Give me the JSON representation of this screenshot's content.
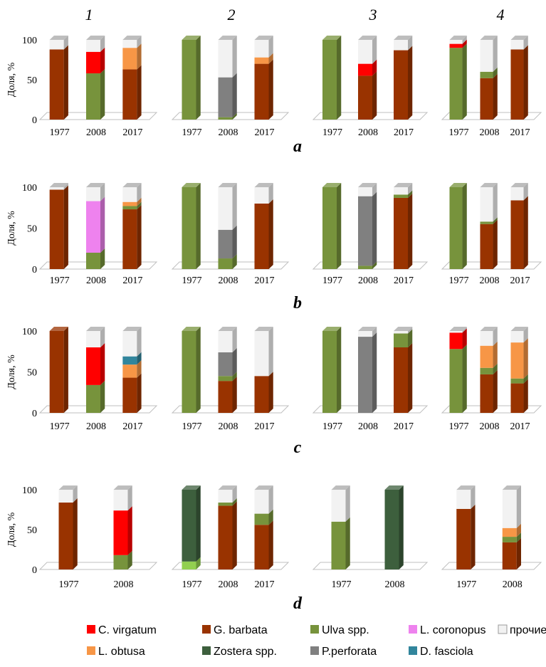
{
  "column_labels": [
    "1",
    "2",
    "3",
    "4"
  ],
  "row_labels": [
    "a",
    "b",
    "c",
    "d"
  ],
  "legend": {
    "items": [
      {
        "key": "cv",
        "label": "C. virgatum",
        "color": "#ff0000"
      },
      {
        "key": "gb",
        "label": "G. barbata",
        "color": "#993300"
      },
      {
        "key": "ul",
        "label": "Ulva spp.",
        "color": "#77933c"
      },
      {
        "key": "lc",
        "label": "L. coronopus",
        "color": "#ee82ee"
      },
      {
        "key": "pr",
        "label": "прочие",
        "color": "#f2f2f2"
      },
      {
        "key": "lo",
        "label": "L. obtusa",
        "color": "#f79646"
      },
      {
        "key": "zo",
        "label": "Zostera spp.",
        "color": "#3d5f3d"
      },
      {
        "key": "pp",
        "label": "P.perforata",
        "color": "#808080"
      },
      {
        "key": "df",
        "label": "D. fasciola",
        "color": "#31859c"
      }
    ]
  },
  "chart_data": [
    {
      "type": "bar",
      "stacked": true,
      "row": "a",
      "col": "1",
      "ylabel": "Доля, %",
      "ylim": [
        0,
        100
      ],
      "yticks": [
        0,
        50,
        100
      ],
      "categories": [
        "1977",
        "2008",
        "2017"
      ],
      "bars": [
        [
          [
            "gb",
            88
          ],
          [
            "pr",
            12
          ]
        ],
        [
          [
            "ul",
            58
          ],
          [
            "cv",
            27
          ],
          [
            "pr",
            15
          ]
        ],
        [
          [
            "gb",
            63
          ],
          [
            "lo",
            27
          ],
          [
            "pr",
            10
          ]
        ]
      ]
    },
    {
      "type": "bar",
      "stacked": true,
      "row": "a",
      "col": "2",
      "ylim": [
        0,
        100
      ],
      "categories": [
        "1977",
        "2008",
        "2017"
      ],
      "bars": [
        [
          [
            "ul",
            100
          ]
        ],
        [
          [
            "ul",
            3
          ],
          [
            "pp",
            50
          ],
          [
            "pr",
            47
          ]
        ],
        [
          [
            "gb",
            70
          ],
          [
            "lo",
            8
          ],
          [
            "pr",
            22
          ]
        ]
      ]
    },
    {
      "type": "bar",
      "stacked": true,
      "row": "a",
      "col": "3",
      "ylim": [
        0,
        100
      ],
      "categories": [
        "1977",
        "2008",
        "2017"
      ],
      "bars": [
        [
          [
            "ul",
            100
          ]
        ],
        [
          [
            "gb",
            55
          ],
          [
            "cv",
            15
          ],
          [
            "pr",
            30
          ]
        ],
        [
          [
            "gb",
            87
          ],
          [
            "pr",
            13
          ]
        ]
      ]
    },
    {
      "type": "bar",
      "stacked": true,
      "row": "a",
      "col": "4",
      "ylim": [
        0,
        100
      ],
      "categories": [
        "1977",
        "2008",
        "2017"
      ],
      "bars": [
        [
          [
            "ul",
            90
          ],
          [
            "cv",
            5
          ],
          [
            "pr",
            5
          ]
        ],
        [
          [
            "gb",
            52
          ],
          [
            "ul",
            8
          ],
          [
            "pr",
            40
          ]
        ],
        [
          [
            "gb",
            88
          ],
          [
            "pr",
            12
          ]
        ]
      ]
    },
    {
      "type": "bar",
      "stacked": true,
      "row": "b",
      "col": "1",
      "ylabel": "Доля, %",
      "ylim": [
        0,
        100
      ],
      "yticks": [
        0,
        50,
        100
      ],
      "categories": [
        "1977",
        "2008",
        "2017"
      ],
      "bars": [
        [
          [
            "gb",
            97
          ],
          [
            "pr",
            3
          ]
        ],
        [
          [
            "ul",
            20
          ],
          [
            "lc",
            63
          ],
          [
            "pr",
            17
          ]
        ],
        [
          [
            "gb",
            73
          ],
          [
            "ul",
            4
          ],
          [
            "lo",
            5
          ],
          [
            "pr",
            18
          ]
        ]
      ]
    },
    {
      "type": "bar",
      "stacked": true,
      "row": "b",
      "col": "2",
      "ylim": [
        0,
        100
      ],
      "categories": [
        "1977",
        "2008",
        "2017"
      ],
      "bars": [
        [
          [
            "ul",
            100
          ]
        ],
        [
          [
            "ul",
            13
          ],
          [
            "pp",
            35
          ],
          [
            "pr",
            52
          ]
        ],
        [
          [
            "gb",
            80
          ],
          [
            "pr",
            20
          ]
        ]
      ]
    },
    {
      "type": "bar",
      "stacked": true,
      "row": "b",
      "col": "3",
      "ylim": [
        0,
        100
      ],
      "categories": [
        "1977",
        "2008",
        "2017"
      ],
      "bars": [
        [
          [
            "ul",
            100
          ]
        ],
        [
          [
            "ul",
            4
          ],
          [
            "pp",
            85
          ],
          [
            "pr",
            11
          ]
        ],
        [
          [
            "gb",
            87
          ],
          [
            "ul",
            4
          ],
          [
            "pr",
            9
          ]
        ]
      ]
    },
    {
      "type": "bar",
      "stacked": true,
      "row": "b",
      "col": "4",
      "ylim": [
        0,
        100
      ],
      "categories": [
        "1977",
        "2008",
        "2017"
      ],
      "bars": [
        [
          [
            "ul",
            100
          ]
        ],
        [
          [
            "gb",
            55
          ],
          [
            "ul",
            3
          ],
          [
            "pr",
            42
          ]
        ],
        [
          [
            "gb",
            84
          ],
          [
            "pr",
            16
          ]
        ]
      ]
    },
    {
      "type": "bar",
      "stacked": true,
      "row": "c",
      "col": "1",
      "ylabel": "Доля, %",
      "ylim": [
        0,
        100
      ],
      "yticks": [
        0,
        50,
        100
      ],
      "categories": [
        "1977",
        "2008",
        "2017"
      ],
      "bars": [
        [
          [
            "gb",
            100
          ]
        ],
        [
          [
            "ul",
            34
          ],
          [
            "cv",
            46
          ],
          [
            "pr",
            20
          ]
        ],
        [
          [
            "gb",
            43
          ],
          [
            "lo",
            16
          ],
          [
            "df",
            10
          ],
          [
            "pr",
            31
          ]
        ]
      ]
    },
    {
      "type": "bar",
      "stacked": true,
      "row": "c",
      "col": "2",
      "ylim": [
        0,
        100
      ],
      "categories": [
        "1977",
        "2008",
        "2017"
      ],
      "bars": [
        [
          [
            "ul",
            100
          ]
        ],
        [
          [
            "gb",
            39
          ],
          [
            "ul",
            6
          ],
          [
            "pp",
            29
          ],
          [
            "pr",
            26
          ]
        ],
        [
          [
            "gb",
            45
          ],
          [
            "pr",
            55
          ]
        ]
      ]
    },
    {
      "type": "bar",
      "stacked": true,
      "row": "c",
      "col": "3",
      "ylim": [
        0,
        100
      ],
      "categories": [
        "1977",
        "2008",
        "2017"
      ],
      "bars": [
        [
          [
            "ul",
            100
          ]
        ],
        [
          [
            "pp",
            93
          ],
          [
            "pr",
            7
          ]
        ],
        [
          [
            "gb",
            80
          ],
          [
            "ul",
            17
          ],
          [
            "pr",
            3
          ]
        ]
      ]
    },
    {
      "type": "bar",
      "stacked": true,
      "row": "c",
      "col": "4",
      "ylim": [
        0,
        100
      ],
      "categories": [
        "1977",
        "2008",
        "2017"
      ],
      "bars": [
        [
          [
            "ul",
            78
          ],
          [
            "cv",
            20
          ],
          [
            "pr",
            2
          ]
        ],
        [
          [
            "gb",
            47
          ],
          [
            "ul",
            8
          ],
          [
            "lo",
            27
          ],
          [
            "pr",
            18
          ]
        ],
        [
          [
            "gb",
            36
          ],
          [
            "ul",
            6
          ],
          [
            "lo",
            44
          ],
          [
            "pr",
            14
          ]
        ]
      ]
    },
    {
      "type": "bar",
      "stacked": true,
      "row": "d",
      "col": "1",
      "ylabel": "Доля, %",
      "ylim": [
        0,
        100
      ],
      "yticks": [
        0,
        50,
        100
      ],
      "categories": [
        "1977",
        "2008"
      ],
      "bars": [
        [
          [
            "gb",
            84
          ],
          [
            "pr",
            16
          ]
        ],
        [
          [
            "ul",
            18
          ],
          [
            "cv",
            56
          ],
          [
            "pr",
            26
          ]
        ]
      ]
    },
    {
      "type": "bar",
      "stacked": true,
      "row": "d",
      "col": "2",
      "ylim": [
        0,
        100
      ],
      "categories": [
        "1977",
        "2008",
        "2017"
      ],
      "bars": [
        [
          [
            "lg",
            10
          ],
          [
            "zo",
            90
          ]
        ],
        [
          [
            "gb",
            80
          ],
          [
            "ul",
            4
          ],
          [
            "pr",
            16
          ]
        ],
        [
          [
            "gb",
            56
          ],
          [
            "ul",
            14
          ],
          [
            "pr",
            30
          ]
        ]
      ]
    },
    {
      "type": "bar",
      "stacked": true,
      "row": "d",
      "col": "3",
      "ylim": [
        0,
        100
      ],
      "categories": [
        "1977",
        "2008"
      ],
      "bars": [
        [
          [
            "ul",
            60
          ],
          [
            "pr",
            40
          ]
        ],
        [
          [
            "zo",
            100
          ]
        ]
      ]
    },
    {
      "type": "bar",
      "stacked": true,
      "row": "d",
      "col": "4",
      "ylim": [
        0,
        100
      ],
      "categories": [
        "1977",
        "2008"
      ],
      "bars": [
        [
          [
            "gb",
            76
          ],
          [
            "pr",
            24
          ]
        ],
        [
          [
            "gb",
            34
          ],
          [
            "ul",
            7
          ],
          [
            "lo",
            11
          ],
          [
            "pr",
            48
          ]
        ]
      ]
    }
  ],
  "colors": {
    "cv": "#ff0000",
    "gb": "#993300",
    "ul": "#77933c",
    "lc": "#ee82ee",
    "pr": "#f2f2f2",
    "lo": "#f79646",
    "zo": "#3d5f3d",
    "pp": "#808080",
    "df": "#31859c",
    "lg": "#92d050"
  }
}
